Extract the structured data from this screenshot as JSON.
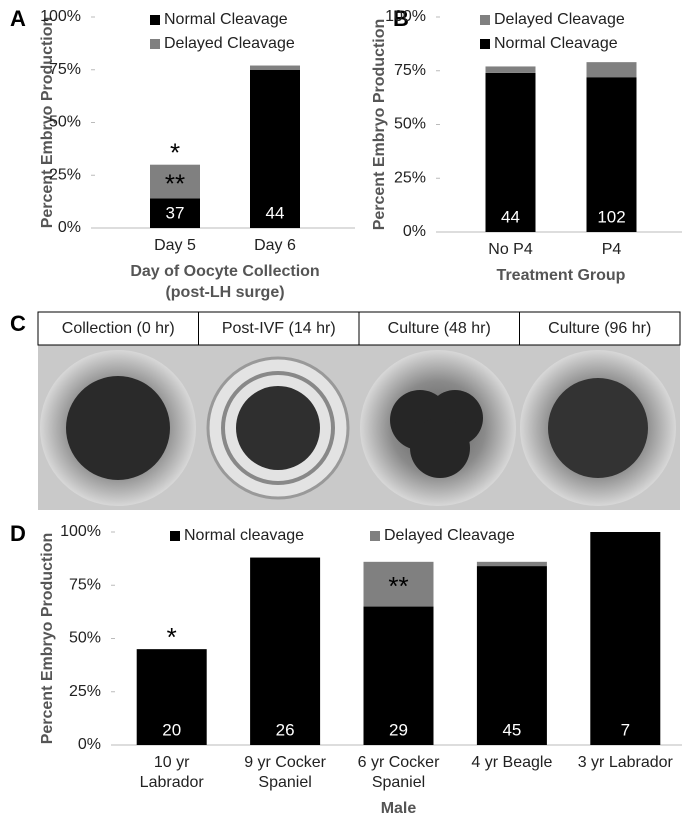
{
  "chart_data": [
    {
      "type": "bar",
      "panel": "A",
      "ylabel": "Percent Embryo Production",
      "xlabel": [
        "Day of Oocyte Collection",
        "(post-LH surge)"
      ],
      "categories": [
        [
          "Day 5"
        ],
        [
          "Day 6"
        ]
      ],
      "series": [
        {
          "name": "Normal Cleavage",
          "color": "#000000",
          "values": [
            14,
            75
          ]
        },
        {
          "name": "Delayed Cleavage",
          "color": "#808080",
          "values": [
            16,
            2
          ]
        }
      ],
      "n_labels": [
        "37",
        "44"
      ],
      "annotations": [
        {
          "text": "*",
          "category": 0,
          "series": 1,
          "position": "above"
        },
        {
          "text": "**",
          "category": 0,
          "series": 1,
          "position": "inside"
        }
      ],
      "stacked": true,
      "legend": "top-left",
      "ylim": [
        0,
        100
      ],
      "yticks": [
        {
          "value": 0,
          "label": "0%"
        },
        {
          "value": 25,
          "label": "25%"
        },
        {
          "value": 50,
          "label": "50%"
        },
        {
          "value": 75,
          "label": "75%"
        },
        {
          "value": 100,
          "label": "100%"
        }
      ]
    },
    {
      "type": "bar",
      "panel": "B",
      "ylabel": "Percent Embryo Production",
      "xlabel": [
        "Treatment Group"
      ],
      "categories": [
        [
          "No P4"
        ],
        [
          "P4"
        ]
      ],
      "series": [
        {
          "name": "Normal Cleavage",
          "color": "#000000",
          "values": [
            74,
            72
          ]
        },
        {
          "name": "Delayed Cleavage",
          "color": "#808080",
          "values": [
            3,
            7
          ]
        }
      ],
      "legend_order": [
        1,
        0
      ],
      "n_labels": [
        "44",
        "102"
      ],
      "annotations": [],
      "stacked": true,
      "legend": "top-left",
      "ylim": [
        0,
        100
      ],
      "yticks": [
        {
          "value": 0,
          "label": "0%"
        },
        {
          "value": 25,
          "label": "25%"
        },
        {
          "value": 50,
          "label": "50%"
        },
        {
          "value": 75,
          "label": "75%"
        },
        {
          "value": 100,
          "label": "100%"
        }
      ]
    },
    {
      "type": "bar",
      "panel": "D",
      "ylabel": "Percent Embryo Production",
      "xlabel": [
        "Male"
      ],
      "categories": [
        [
          "10 yr",
          "Labrador"
        ],
        [
          "9 yr Cocker",
          "Spaniel"
        ],
        [
          "6 yr Cocker",
          "Spaniel"
        ],
        [
          "4 yr Beagle"
        ],
        [
          "3 yr Labrador"
        ]
      ],
      "series": [
        {
          "name": "Normal cleavage",
          "color": "#000000",
          "values": [
            45,
            88,
            65,
            84,
            100
          ]
        },
        {
          "name": "Delayed Cleavage",
          "color": "#808080",
          "values": [
            null,
            null,
            21,
            2,
            null
          ]
        }
      ],
      "n_labels": [
        "20",
        "26",
        "29",
        "45",
        "7"
      ],
      "annotations": [
        {
          "text": "*",
          "category": 0,
          "series": 0,
          "position": "above"
        },
        {
          "text": "**",
          "category": 2,
          "series": 1,
          "position": "inside"
        }
      ],
      "stacked": true,
      "legend": "top",
      "ylim": [
        0,
        100
      ],
      "yticks": [
        {
          "value": 0,
          "label": "0%"
        },
        {
          "value": 25,
          "label": "25%"
        },
        {
          "value": 50,
          "label": "50%"
        },
        {
          "value": 75,
          "label": "75%"
        },
        {
          "value": 100,
          "label": "100%"
        }
      ]
    }
  ],
  "panel_c": {
    "panel": "C",
    "headers": [
      "Collection (0 hr)",
      "Post-IVF (14 hr)",
      "Culture (48 hr)",
      "Culture (96 hr)"
    ]
  }
}
